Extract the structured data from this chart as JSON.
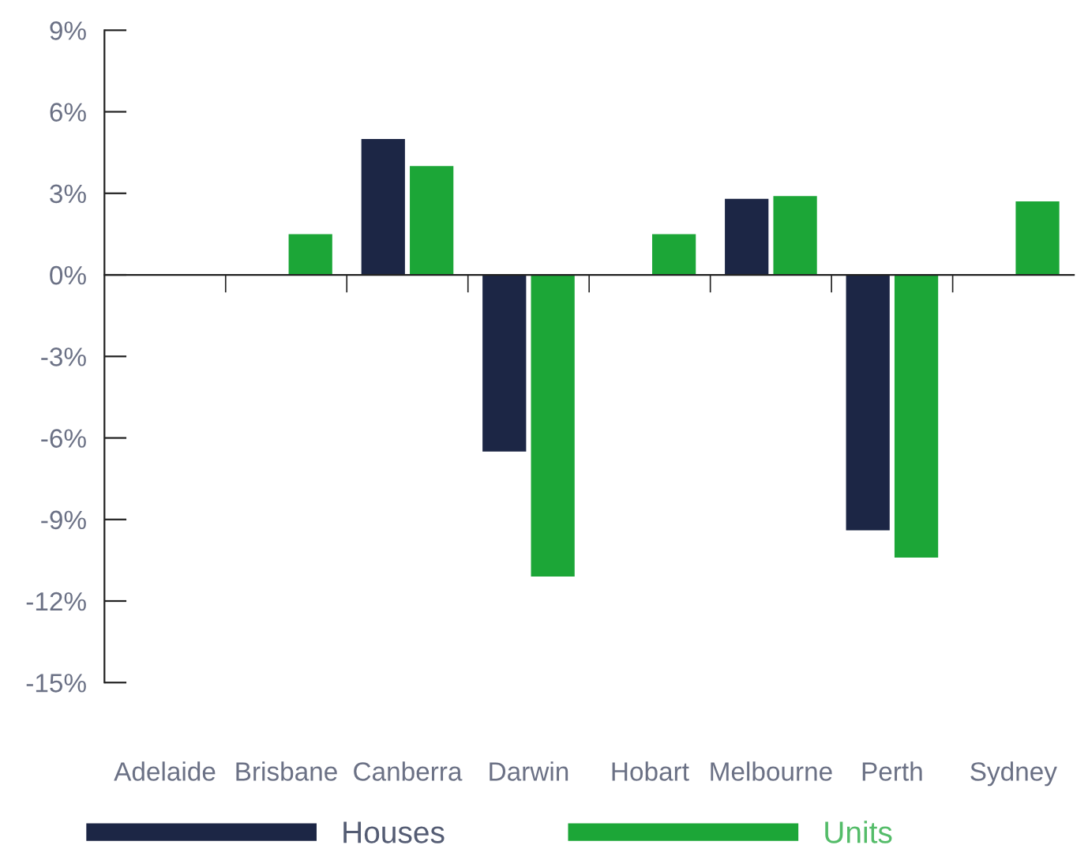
{
  "chart_data": {
    "type": "bar",
    "categories": [
      "Adelaide",
      "Brisbane",
      "Canberra",
      "Darwin",
      "Hobart",
      "Melbourne",
      "Perth",
      "Sydney"
    ],
    "series": [
      {
        "name": "Houses",
        "color": "#1c2645",
        "values": [
          null,
          null,
          5.0,
          -6.5,
          null,
          2.8,
          -9.4,
          null
        ]
      },
      {
        "name": "Units",
        "color": "#1ca637",
        "values": [
          0,
          1.5,
          4.0,
          -11.1,
          1.5,
          2.9,
          -10.4,
          2.7
        ]
      }
    ],
    "ylim": [
      -15,
      9
    ],
    "yticks": [
      {
        "value": -15,
        "label": "-15%"
      },
      {
        "value": -12,
        "label": "-12%"
      },
      {
        "value": -9,
        "label": "-9%"
      },
      {
        "value": -6,
        "label": "-6%"
      },
      {
        "value": -3,
        "label": "-3%"
      },
      {
        "value": 0,
        "label": "0%"
      },
      {
        "value": 3,
        "label": "3%"
      },
      {
        "value": 6,
        "label": "6%"
      },
      {
        "value": 9,
        "label": "9%"
      }
    ],
    "legend": "bottom"
  }
}
